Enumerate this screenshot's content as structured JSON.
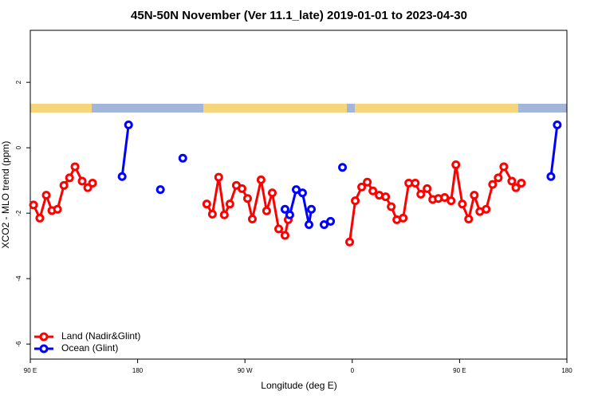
{
  "chart_data": {
    "type": "line",
    "title": "45N-50N November (Ver 11.1_late)   2019-01-01 to 2023-04-30",
    "x_label": "Longitude (deg E)",
    "y_label": "XCO2 - MLO trend (ppm)",
    "xlim": [
      90,
      540
    ],
    "ylim": [
      -6.46,
      3.59
    ],
    "xticks": [
      {
        "value": 90,
        "label": "90 E"
      },
      180,
      {
        "value": 270,
        "label": "90 W"
      },
      {
        "value": 360,
        "label": "0"
      },
      {
        "value": 450,
        "label": "90 E"
      },
      {
        "value": 540,
        "label": "180"
      }
    ],
    "yticks": [
      -6,
      -4,
      -2,
      0,
      2
    ],
    "legend": "bottom-left",
    "series": [
      {
        "name": "Land (Nadir&Glint)",
        "color": "#ff0000",
        "x": [
          92.7,
          98.0,
          103.4,
          108.1,
          112.8,
          118.2,
          122.9,
          127.5,
          133.5,
          138.2,
          142.2,
          null,
          238.0,
          242.7,
          248.0,
          252.7,
          257.4,
          262.8,
          267.5,
          272.2,
          276.2,
          283.5,
          288.2,
          292.9,
          298.3,
          303.6,
          306.3,
          null,
          357.8,
          362.5,
          367.9,
          372.6,
          377.3,
          382.6,
          388.0,
          392.7,
          397.4,
          402.7,
          407.4,
          412.8,
          417.5,
          422.8,
          427.5,
          432.2,
          437.5,
          442.9,
          446.9,
          452.3,
          457.6,
          462.3,
          467.0,
          472.3,
          477.7,
          482.4,
          487.1,
          493.8,
          497.2,
          501.8
        ],
        "values": [
          -1.75,
          -2.15,
          -1.45,
          -1.92,
          -1.88,
          -1.15,
          -0.92,
          -0.58,
          -1.02,
          -1.22,
          -1.08,
          null,
          -1.72,
          -2.03,
          -0.9,
          -2.05,
          -1.72,
          -1.15,
          -1.25,
          -1.55,
          -2.18,
          -0.98,
          -1.93,
          -1.38,
          -2.48,
          -2.68,
          -2.2,
          null,
          -2.88,
          -1.62,
          -1.2,
          -1.05,
          -1.32,
          -1.45,
          -1.5,
          -1.8,
          -2.2,
          -2.15,
          -1.08,
          -1.08,
          -1.42,
          -1.25,
          -1.58,
          -1.55,
          -1.52,
          -1.62,
          -0.52,
          -1.72,
          -2.18,
          -1.45,
          -1.95,
          -1.88,
          -1.12,
          -0.92,
          -0.58,
          -1.02,
          -1.22,
          -1.08
        ]
      },
      {
        "name": "Ocean (Glint)",
        "color": "#0000ff",
        "x": [
          167.0,
          172.4,
          null,
          199.1,
          null,
          217.9,
          null,
          303.6,
          307.6,
          313.0,
          318.3,
          323.7,
          325.7,
          null,
          336.4,
          341.8,
          null,
          351.8,
          null,
          526.6,
          531.9
        ],
        "values": [
          -0.88,
          0.7,
          null,
          -1.28,
          null,
          -0.32,
          null,
          -1.88,
          -2.05,
          -1.28,
          -1.38,
          -2.35,
          -1.88,
          null,
          -2.35,
          -2.25,
          null,
          -0.6,
          null,
          -0.88,
          0.7
        ]
      }
    ]
  }
}
